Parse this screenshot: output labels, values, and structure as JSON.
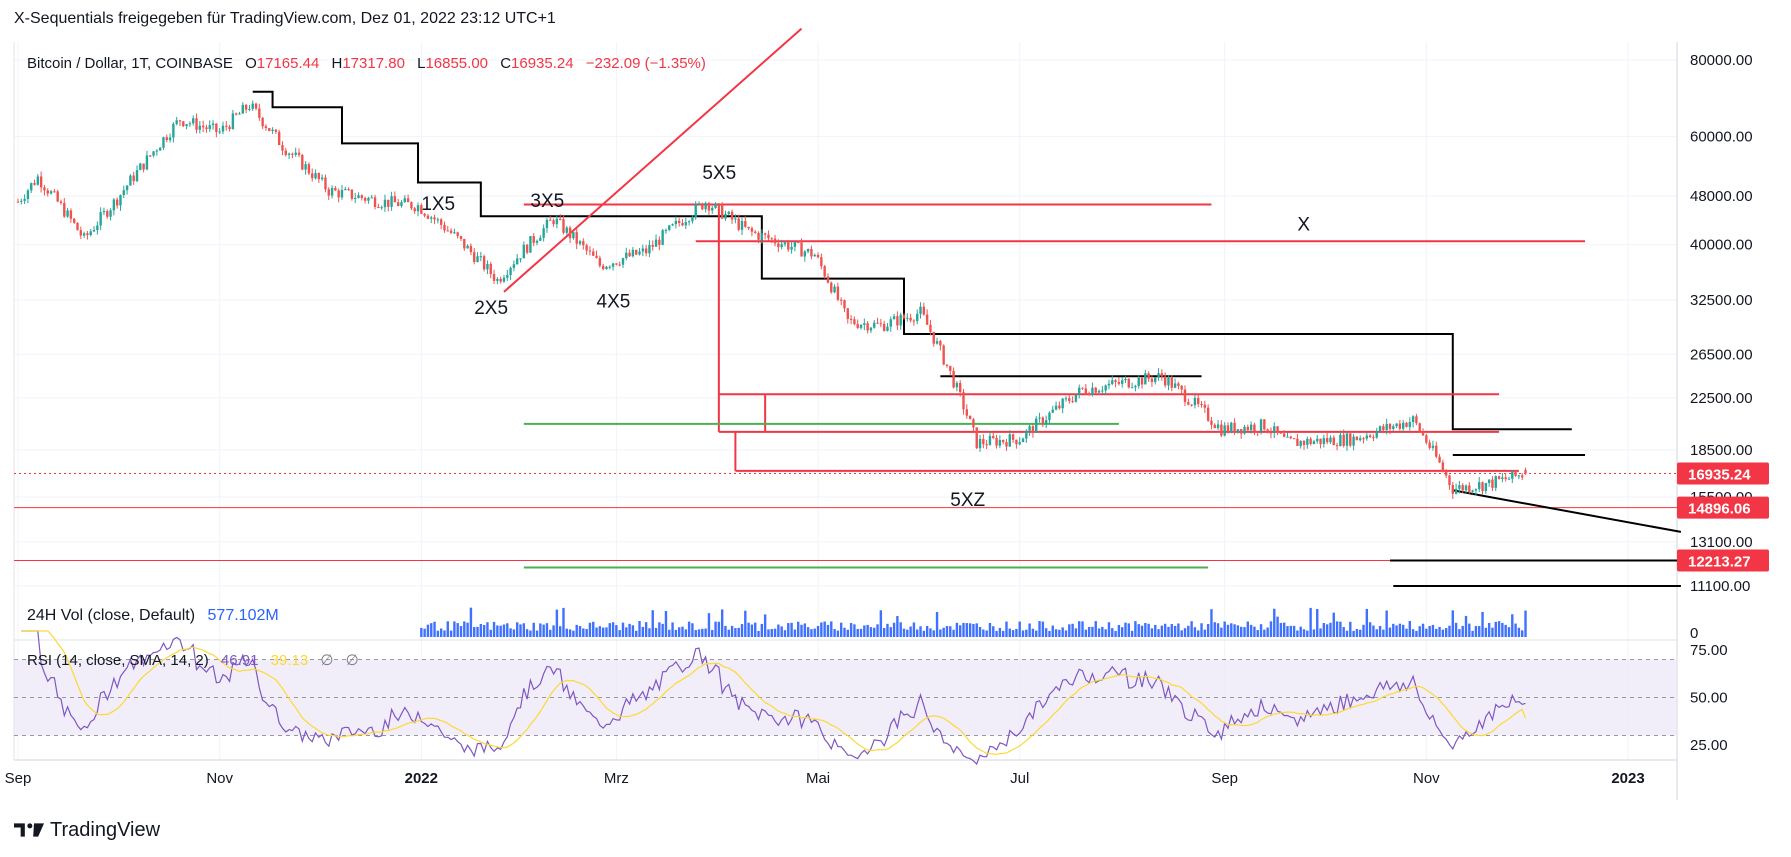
{
  "header": {
    "published_by": "X-Sequentials freigegeben für TradingView.com, Dez 01, 2022 23:12 UTC+1"
  },
  "legend": {
    "symbol": "Bitcoin / Dollar, 1T, COINBASE",
    "open_label": "O",
    "open": "17165.44",
    "high_label": "H",
    "high": "17317.80",
    "low_label": "L",
    "low": "16855.00",
    "close_label": "C",
    "close": "16935.24",
    "change": "−232.09 (−1.35%)"
  },
  "volume_legend": {
    "name": "24H Vol (close, Default)",
    "value": "577.102M"
  },
  "rsi_legend": {
    "name": "RSI (14, close, SMA, 14, 2)",
    "rsi": "46.91",
    "sma": "39.13",
    "extra1": "∅",
    "extra2": "∅"
  },
  "footer": {
    "brand": "TradingView"
  },
  "colors": {
    "up": "#26a69a",
    "down": "#ef5350",
    "red": "#f23645",
    "black": "#000000",
    "green": "#4caf50",
    "rsi": "#7e57c2",
    "rsi_sma": "#fdd835"
  },
  "chart_data": [
    {
      "type": "candlestick",
      "title": "Bitcoin / Dollar, 1T, COINBASE",
      "price_axis_ticks": [
        "80000.00",
        "60000.00",
        "48000.00",
        "40000.00",
        "32500.00",
        "26500.00",
        "22500.00",
        "18500.00",
        "15500.00",
        "13100.00",
        "11100.00"
      ],
      "price_labels": [
        {
          "value": "16935.24",
          "color": "#f23645"
        },
        {
          "value": "14896.06",
          "color": "#f23645"
        },
        {
          "value": "12213.27",
          "color": "#f23645"
        }
      ],
      "time_axis_ticks": [
        "Sep",
        "Nov",
        "2022",
        "Mrz",
        "Mai",
        "Jul",
        "Sep",
        "Nov",
        "2023"
      ],
      "scale": "log",
      "annotations": [
        "1X5",
        "2X5",
        "3X5",
        "4X5",
        "5X5",
        "X",
        "5XZ"
      ],
      "ohlc_last": {
        "open": 17165.44,
        "high": 17317.8,
        "low": 16855.0,
        "close": 16935.24
      },
      "close_path": [
        [
          "2021-09-01",
          47000
        ],
        [
          "2021-09-07",
          51500
        ],
        [
          "2021-09-21",
          40800
        ],
        [
          "2021-10-01",
          47500
        ],
        [
          "2021-10-10",
          55000
        ],
        [
          "2021-10-20",
          64000
        ],
        [
          "2021-11-01",
          61000
        ],
        [
          "2021-11-10",
          67500
        ],
        [
          "2021-11-20",
          58000
        ],
        [
          "2021-12-04",
          49000
        ],
        [
          "2021-12-20",
          47000
        ],
        [
          "2021-12-31",
          46300
        ],
        [
          "2022-01-10",
          41800
        ],
        [
          "2022-01-24",
          35000
        ],
        [
          "2022-02-10",
          44000
        ],
        [
          "2022-02-24",
          37000
        ],
        [
          "2022-03-10",
          39000
        ],
        [
          "2022-03-28",
          47000
        ],
        [
          "2022-04-10",
          42000
        ],
        [
          "2022-04-30",
          38500
        ],
        [
          "2022-05-10",
          30000
        ],
        [
          "2022-05-20",
          29500
        ],
        [
          "2022-06-01",
          31000
        ],
        [
          "2022-06-18",
          19000
        ],
        [
          "2022-07-01",
          19300
        ],
        [
          "2022-07-20",
          23200
        ],
        [
          "2022-08-13",
          24400
        ],
        [
          "2022-08-31",
          20000
        ],
        [
          "2022-09-13",
          20300
        ],
        [
          "2022-09-20",
          19000
        ],
        [
          "2022-10-10",
          19300
        ],
        [
          "2022-10-28",
          20700
        ],
        [
          "2022-11-09",
          16000
        ],
        [
          "2022-11-20",
          16300
        ],
        [
          "2022-12-01",
          16935
        ]
      ]
    },
    {
      "type": "bar",
      "title": "24H Vol (close, Default)",
      "last_value": "577.102M",
      "axis_ticks": [
        "0"
      ]
    },
    {
      "type": "line",
      "title": "RSI (14, close, SMA, 14, 2)",
      "axis_ticks": [
        "75.00",
        "50.00",
        "25.00"
      ],
      "band": [
        30,
        70
      ],
      "series": [
        {
          "name": "RSI",
          "last": 46.91
        },
        {
          "name": "SMA",
          "last": 39.13
        }
      ]
    }
  ]
}
